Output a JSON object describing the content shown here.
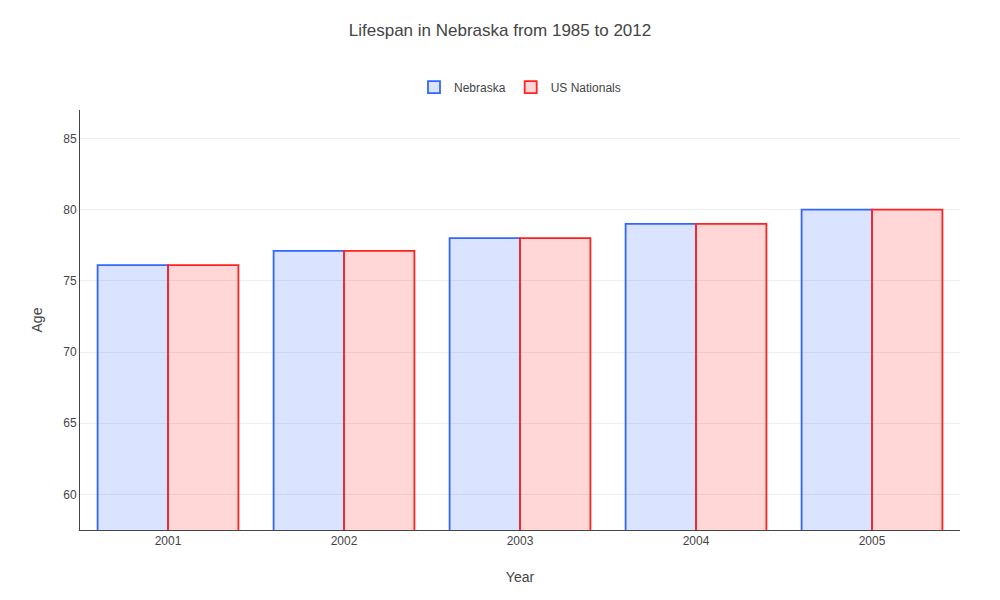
{
  "chart_data": {
    "type": "bar",
    "title": "Lifespan in Nebraska from 1985 to 2012",
    "x_label": "Year",
    "y_label": "Age",
    "categories": [
      "2001",
      "2002",
      "2003",
      "2004",
      "2005"
    ],
    "series": [
      {
        "name": "Nebraska",
        "color": "#3366ff",
        "values": [
          76.1,
          77.1,
          78.0,
          79.0,
          80.0
        ]
      },
      {
        "name": "US Nationals",
        "color": "#ff2222",
        "values": [
          76.1,
          77.1,
          78.0,
          79.0,
          80.0
        ]
      }
    ],
    "ylim": [
      57.5,
      87
    ],
    "yticks": [
      60,
      65,
      70,
      75,
      80,
      85
    ],
    "grid": true,
    "legend": "top"
  }
}
